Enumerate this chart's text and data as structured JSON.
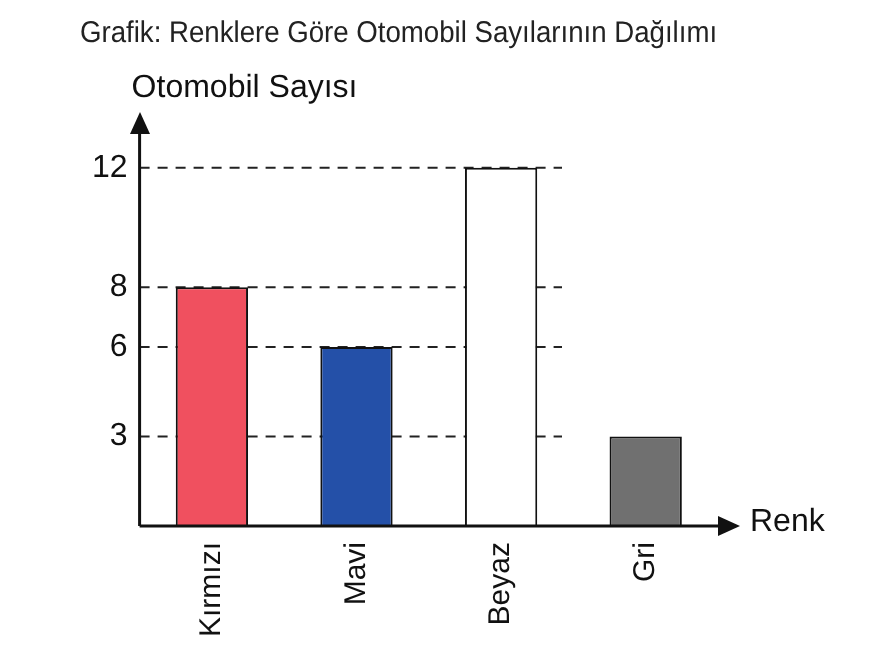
{
  "chart_data": {
    "type": "bar",
    "title": "Grafik: Renklere Göre Otomobil Sayılarının Dağılımı",
    "xlabel": "Renk",
    "ylabel": "Otomobil Sayısı",
    "categories": [
      "Kırmızı",
      "Mavi",
      "Beyaz",
      "Gri"
    ],
    "values": [
      8,
      6,
      12,
      3
    ],
    "colors": [
      "#f0505f",
      "#2450a8",
      "#ffffff",
      "#707070"
    ],
    "ylim": [
      0,
      13.2
    ],
    "yticks": [
      3,
      6,
      8,
      12
    ],
    "grid": "y",
    "legend": false
  }
}
